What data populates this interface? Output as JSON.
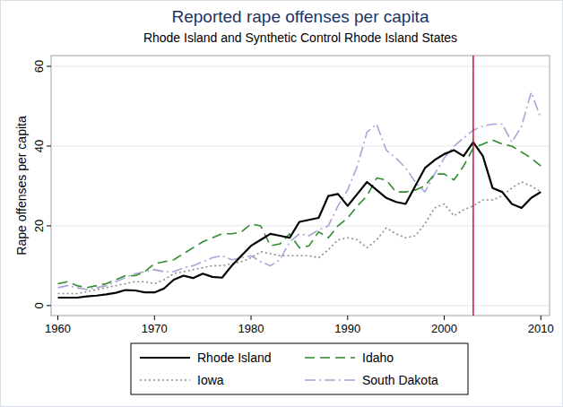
{
  "chart_data": {
    "type": "line",
    "title": "Reported rape offenses per capita",
    "subtitle": "Rhode Island and Synthetic Control Rhode Island States",
    "y_label": "Rape offenses per capita",
    "x": [
      1960,
      1961,
      1962,
      1963,
      1964,
      1965,
      1966,
      1967,
      1968,
      1969,
      1970,
      1971,
      1972,
      1973,
      1974,
      1975,
      1976,
      1977,
      1978,
      1979,
      1980,
      1981,
      1982,
      1983,
      1984,
      1985,
      1986,
      1987,
      1988,
      1989,
      1990,
      1991,
      1992,
      1993,
      1994,
      1995,
      1996,
      1997,
      1998,
      1999,
      2000,
      2001,
      2002,
      2003,
      2004,
      2005,
      2006,
      2007,
      2008,
      2009,
      2010
    ],
    "series": [
      {
        "name": "Rhode Island",
        "color": "#000000",
        "line_style": "solid",
        "values": [
          2,
          2,
          2,
          2.3,
          2.5,
          2.8,
          3.2,
          3.9,
          3.8,
          3.3,
          3.3,
          4.3,
          6.5,
          7.5,
          6.9,
          8,
          7.2,
          7,
          10,
          12.5,
          15,
          16.5,
          18,
          17.5,
          17,
          21,
          21.5,
          22,
          27.5,
          28,
          25,
          28,
          31,
          29,
          27,
          26,
          25.5,
          30,
          34.5,
          36.5,
          38,
          39,
          37.5,
          41,
          37.5,
          29.5,
          28.5,
          25.5,
          24.5,
          27,
          28.5
        ]
      },
      {
        "name": "Idaho",
        "color": "#2e8b2e",
        "line_style": "dashed",
        "values": [
          5.5,
          6,
          5,
          4.5,
          5,
          5.5,
          6.5,
          7.5,
          7.5,
          8.5,
          10.5,
          11,
          11.5,
          13,
          14.5,
          16,
          17,
          18,
          18,
          18.5,
          20.5,
          20,
          15,
          15.5,
          18,
          14.5,
          15,
          18.5,
          17,
          20,
          22,
          25,
          27.5,
          32,
          31.5,
          28.5,
          28.5,
          29,
          30,
          33,
          33,
          31.5,
          35,
          39.5,
          40.5,
          41.5,
          40.5,
          40,
          38.5,
          37,
          35
        ]
      },
      {
        "name": "Iowa",
        "color": "#8c8c8c",
        "line_style": "dotted",
        "values": [
          3,
          3,
          3,
          3.5,
          4,
          4.5,
          5,
          5.5,
          6,
          6,
          5.5,
          6.5,
          8,
          8.5,
          9,
          9.5,
          10,
          10,
          10.5,
          11,
          12,
          13.5,
          13,
          12.5,
          12.5,
          12.5,
          12.5,
          12,
          14,
          16.5,
          17,
          16.5,
          14.5,
          16.5,
          19.5,
          18,
          17,
          17.5,
          20.5,
          24.5,
          25.5,
          22.5,
          24,
          25,
          26.5,
          26.5,
          27.5,
          29.5,
          31,
          30,
          28.5
        ]
      },
      {
        "name": "South Dakota",
        "color": "#aaa3d8",
        "line_style": "dash-dot",
        "values": [
          4.5,
          5,
          4.5,
          4,
          4.5,
          5,
          6,
          7,
          8,
          8.5,
          9,
          8.5,
          8.5,
          9.5,
          10,
          11,
          12,
          12.5,
          11.5,
          12,
          12.5,
          11,
          10,
          11.5,
          16,
          18,
          17.5,
          19,
          20,
          25,
          29,
          35,
          43.5,
          45.5,
          39,
          37,
          34.5,
          31,
          28.5,
          33,
          37,
          40,
          42,
          44,
          45,
          45.5,
          45.5,
          41,
          45,
          53.5,
          47
        ]
      }
    ],
    "reference_lines": [
      {
        "x": 2003,
        "color": "#d0103a"
      }
    ],
    "xlim": [
      1959.3,
      2010.9
    ],
    "ylim": [
      -2.5,
      62.7
    ],
    "xticks": [
      1960,
      1970,
      1980,
      1990,
      2000,
      2010
    ],
    "yticks": [
      0,
      20,
      40,
      60
    ],
    "grid": true,
    "legend": "bottom"
  }
}
